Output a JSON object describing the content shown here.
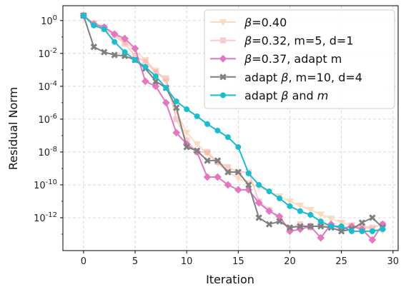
{
  "chart_data": {
    "type": "line",
    "xlabel": "Iteration",
    "ylabel": "Residual Norm",
    "yscale": "log",
    "xlim": [
      -2,
      30.5
    ],
    "ylim": [
      1e-14,
      8
    ],
    "xticks": [
      0,
      5,
      10,
      15,
      20,
      25,
      30
    ],
    "yticks": [
      {
        "value": 1,
        "label": "10^0"
      },
      {
        "value": 0.01,
        "label": "10^-2"
      },
      {
        "value": 0.0001,
        "label": "10^-4"
      },
      {
        "value": 1e-06,
        "label": "10^-6"
      },
      {
        "value": 1e-08,
        "label": "10^-8"
      },
      {
        "value": 1e-10,
        "label": "10^-10"
      },
      {
        "value": 1e-12,
        "label": "10^-12"
      }
    ],
    "grid": true,
    "legend_position": "top-right",
    "series": [
      {
        "name": "β=0.40",
        "legend_parts": [
          {
            "t": "β",
            "i": true
          },
          {
            "t": "=0.40"
          }
        ],
        "color": "#f9c08f",
        "opacity": 0.55,
        "marker": "triangle-down",
        "x": [
          0,
          1,
          2,
          3,
          4,
          5,
          6,
          7,
          8,
          9,
          10,
          11,
          12,
          13,
          14,
          15,
          16,
          17,
          18,
          19,
          20,
          21,
          22,
          23,
          24,
          25,
          26,
          27,
          28,
          29
        ],
        "y": [
          2,
          0.7,
          0.4,
          0.15,
          0.05,
          0.015,
          0.004,
          0.0009,
          0.0002,
          3e-06,
          1.5e-07,
          3e-08,
          8e-09,
          2e-09,
          6e-10,
          2.5e-10,
          1.3e-10,
          7e-11,
          4e-11,
          2e-11,
          1e-11,
          5.5e-12,
          3e-12,
          1.6e-12,
          9e-13,
          5e-13,
          3.5e-13,
          2.5e-13,
          2e-13,
          1.5e-13
        ]
      },
      {
        "name": "β=0.32, m=5, d=1",
        "legend_parts": [
          {
            "t": "β",
            "i": true
          },
          {
            "t": "=0.32, m=5, d=1"
          }
        ],
        "color": "#f3a5a5",
        "opacity": 0.55,
        "marker": "square",
        "x": [
          0,
          1,
          2,
          3,
          4,
          5,
          6,
          7,
          8,
          9,
          10,
          11,
          12,
          13,
          14,
          15,
          16,
          17,
          18,
          19,
          20,
          21,
          22,
          23,
          24,
          25,
          26,
          27,
          28,
          29
        ],
        "y": [
          2,
          0.6,
          0.3,
          0.12,
          0.04,
          0.007,
          0.003,
          0.0007,
          0.0003,
          1e-06,
          5e-08,
          1e-08,
          1e-08,
          2.5e-09,
          1.2e-09,
          6e-10,
          6e-10,
          1e-11,
          3e-12,
          8e-13,
          2.5e-13,
          4e-13,
          2.5e-13,
          4e-13,
          3e-13,
          2.5e-13,
          3e-13,
          3e-13,
          2.5e-13,
          4e-13
        ]
      },
      {
        "name": "β=0.37, adapt m",
        "legend_parts": [
          {
            "t": "β",
            "i": true
          },
          {
            "t": "=0.37, adapt m"
          }
        ],
        "color": "#e377c2",
        "opacity": 1,
        "marker": "diamond",
        "x": [
          0,
          1,
          2,
          3,
          4,
          5,
          6,
          7,
          8,
          9,
          10,
          11,
          12,
          13,
          14,
          15,
          16,
          17,
          18,
          19,
          20,
          21,
          22,
          23,
          24,
          25,
          26,
          27,
          28,
          29
        ],
        "y": [
          2,
          0.6,
          0.4,
          0.15,
          0.08,
          0.02,
          0.0002,
          0.0001,
          1e-05,
          1.5e-07,
          3e-08,
          1e-08,
          3e-10,
          3e-10,
          1e-10,
          5e-11,
          5e-11,
          8e-12,
          2.5e-12,
          1.2e-12,
          1.5e-13,
          2e-13,
          3e-13,
          6e-14,
          4e-13,
          2e-13,
          3e-13,
          2e-13,
          4.5e-14,
          4e-13
        ]
      },
      {
        "name": "adapt β, m=10, d=4",
        "legend_parts": [
          {
            "t": "adapt "
          },
          {
            "t": "β",
            "i": true
          },
          {
            "t": ", m=10, d=4"
          }
        ],
        "color": "#7f7f7f",
        "opacity": 1,
        "marker": "x",
        "x": [
          0,
          1,
          2,
          3,
          4,
          5,
          6,
          7,
          8,
          9,
          10,
          11,
          12,
          13,
          14,
          15,
          16,
          17,
          18,
          19,
          20,
          21,
          22,
          23,
          24,
          25,
          26,
          27,
          28,
          29
        ],
        "y": [
          2,
          0.025,
          0.012,
          0.008,
          0.007,
          0.004,
          0.0012,
          0.0002,
          8e-05,
          5e-06,
          2e-08,
          1.2e-08,
          3e-09,
          3e-09,
          6e-10,
          6e-10,
          1e-10,
          1e-12,
          4e-13,
          6e-13,
          2.5e-13,
          3e-13,
          3e-13,
          3e-13,
          2.5e-13,
          1.5e-13,
          2e-13,
          5e-13,
          1e-12,
          2.5e-13
        ]
      },
      {
        "name": "adapt β and m",
        "legend_parts": [
          {
            "t": "adapt "
          },
          {
            "t": "β",
            "i": true
          },
          {
            "t": " and "
          },
          {
            "t": "m",
            "i": true
          }
        ],
        "color": "#17becf",
        "opacity": 1,
        "marker": "circle",
        "x": [
          0,
          1,
          2,
          3,
          4,
          5,
          6,
          7,
          8,
          9,
          10,
          11,
          12,
          13,
          14,
          15,
          16,
          17,
          18,
          19,
          20,
          21,
          22,
          23,
          24,
          25,
          26,
          27,
          28,
          29
        ],
        "y": [
          2,
          0.5,
          0.3,
          0.05,
          0.012,
          0.004,
          0.0015,
          0.0004,
          8e-05,
          1.2e-05,
          4e-06,
          1.5e-06,
          5e-07,
          2e-07,
          8e-08,
          2e-08,
          5e-10,
          1e-10,
          4e-11,
          1.5e-11,
          5e-12,
          2.5e-12,
          1.5e-12,
          6e-13,
          3e-13,
          3e-13,
          1.5e-13,
          1.5e-13,
          1.5e-13,
          2e-13
        ]
      }
    ]
  }
}
